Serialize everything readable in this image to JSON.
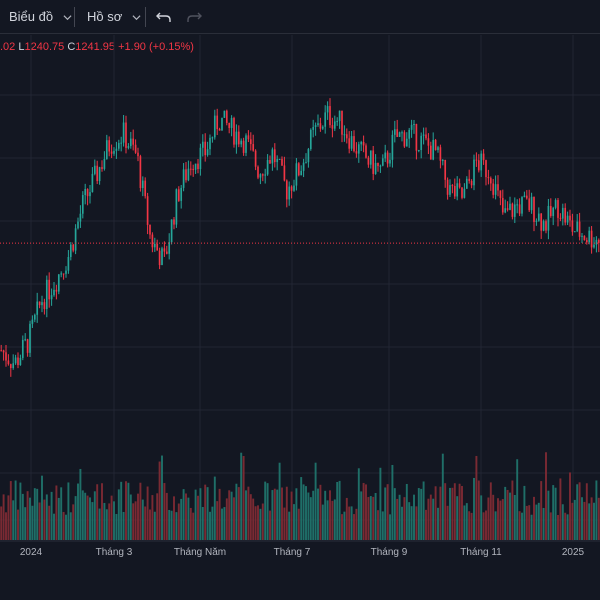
{
  "toolbar": {
    "chart_menu": "Biểu đồ",
    "profile_menu": "Hồ sơ"
  },
  "icons": {
    "undo": "undo-arrow-icon",
    "redo": "redo-arrow-icon",
    "dropdown": "chevron-down-icon"
  },
  "legend": {
    "h_value": ".02",
    "l_label": "L",
    "l_value": "1240.75",
    "c_label": "C",
    "c_value": "1241.95",
    "change": "+1.90 (+0.15%)"
  },
  "colors": {
    "background": "#131722",
    "up": "#26a69a",
    "down": "#f23645",
    "volume_up": "#1f6f68",
    "volume_down": "#7a2a33",
    "last_price_line": "#f23645"
  },
  "chart_data": {
    "type": "candlestick",
    "x_tick_labels": [
      "2024",
      "Tháng 3",
      "Tháng Năm",
      "Tháng 7",
      "Tháng 9",
      "Tháng 11",
      "2025"
    ],
    "price_range": [
      1100,
      1350
    ],
    "last_close": 1241.95,
    "grid": true,
    "volume_pane": true,
    "close_trend": [
      1185,
      1178,
      1190,
      1212,
      1222,
      1236,
      1262,
      1278,
      1295,
      1300,
      1288,
      1244,
      1232,
      1268,
      1286,
      1290,
      1308,
      1302,
      1296,
      1280,
      1290,
      1270,
      1282,
      1300,
      1310,
      1306,
      1294,
      1286,
      1280,
      1298,
      1300,
      1296,
      1290,
      1270,
      1266,
      1285,
      1280,
      1256,
      1262,
      1262,
      1252,
      1262,
      1250,
      1246,
      1244
    ]
  }
}
